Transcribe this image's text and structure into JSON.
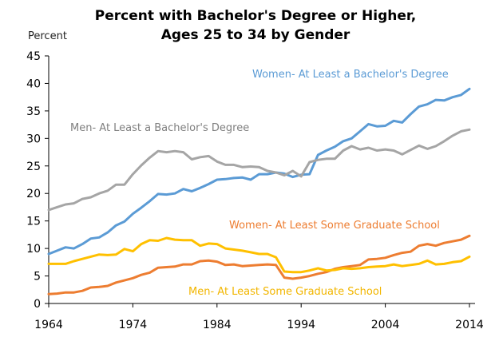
{
  "chart_data": {
    "type": "line",
    "title": [
      "Percent with Bachelor's Degree or Higher,",
      "Ages 25 to 34 by Gender"
    ],
    "ylabel": "Percent",
    "xlabel": "",
    "xlim": [
      1964,
      2014
    ],
    "ylim": [
      0,
      45
    ],
    "x_ticks": [
      1964,
      1974,
      1984,
      1994,
      2004,
      2014
    ],
    "y_ticks": [
      0,
      5,
      10,
      15,
      20,
      25,
      30,
      35,
      40,
      45
    ],
    "grid": false,
    "legend": "none (series labeled directly on chart)",
    "x": [
      1964,
      1965,
      1966,
      1967,
      1968,
      1969,
      1970,
      1971,
      1972,
      1973,
      1974,
      1975,
      1976,
      1977,
      1978,
      1979,
      1980,
      1981,
      1982,
      1983,
      1984,
      1985,
      1986,
      1987,
      1988,
      1989,
      1990,
      1991,
      1992,
      1993,
      1994,
      1995,
      1996,
      1997,
      1998,
      1999,
      2000,
      2001,
      2002,
      2003,
      2004,
      2005,
      2006,
      2007,
      2008,
      2009,
      2010,
      2011,
      2012,
      2013,
      2014
    ],
    "series": [
      {
        "name": "Women- At Least a Bachelor's Degree",
        "color": "#5B9BD5",
        "values": [
          9.0,
          9.6,
          10.2,
          10.0,
          10.8,
          11.8,
          12.0,
          12.9,
          14.2,
          14.9,
          16.3,
          17.4,
          18.6,
          19.9,
          19.8,
          20.0,
          20.8,
          20.4,
          21.0,
          21.7,
          22.5,
          22.6,
          22.8,
          22.9,
          22.5,
          23.5,
          23.5,
          23.8,
          23.6,
          23.0,
          23.4,
          23.5,
          27.0,
          27.8,
          28.5,
          29.5,
          30.0,
          31.3,
          32.6,
          32.2,
          32.3,
          33.2,
          32.9,
          34.4,
          35.8,
          36.2,
          37.0,
          36.9,
          37.5,
          37.9,
          39.0
        ]
      },
      {
        "name": "Men- At Least a Bachelor's Degree",
        "color": "#A5A5A5",
        "values": [
          17.0,
          17.5,
          18.0,
          18.2,
          19.0,
          19.3,
          20.0,
          20.5,
          21.6,
          21.6,
          23.5,
          25.1,
          26.5,
          27.7,
          27.5,
          27.7,
          27.5,
          26.2,
          26.6,
          26.8,
          25.8,
          25.2,
          25.2,
          24.8,
          24.9,
          24.8,
          24.1,
          23.8,
          23.3,
          24.1,
          23.1,
          25.7,
          26.1,
          26.3,
          26.3,
          27.8,
          28.6,
          28.0,
          28.3,
          27.8,
          28.0,
          27.8,
          27.1,
          27.9,
          28.7,
          28.1,
          28.6,
          29.5,
          30.5,
          31.3,
          31.6
        ]
      },
      {
        "name": "Women- At Least Some Graduate School",
        "color": "#ED7D31",
        "values": [
          1.7,
          1.8,
          2.0,
          2.0,
          2.3,
          2.9,
          3.0,
          3.2,
          3.8,
          4.2,
          4.6,
          5.2,
          5.6,
          6.5,
          6.6,
          6.7,
          7.1,
          7.1,
          7.7,
          7.8,
          7.6,
          7.0,
          7.1,
          6.8,
          6.9,
          7.0,
          7.1,
          7.0,
          4.7,
          4.5,
          4.7,
          5.0,
          5.4,
          5.7,
          6.3,
          6.6,
          6.8,
          7.0,
          8.0,
          8.1,
          8.3,
          8.8,
          9.2,
          9.4,
          10.5,
          10.8,
          10.5,
          11.0,
          11.3,
          11.6,
          12.3
        ]
      },
      {
        "name": "Men- At Least Some Graduate School",
        "color": "#FFC000",
        "values": [
          7.2,
          7.2,
          7.2,
          7.7,
          8.1,
          8.5,
          8.9,
          8.8,
          8.9,
          9.9,
          9.5,
          10.8,
          11.5,
          11.4,
          11.9,
          11.6,
          11.5,
          11.5,
          10.5,
          10.9,
          10.8,
          10.0,
          9.8,
          9.6,
          9.3,
          9.0,
          9.0,
          8.4,
          5.8,
          5.7,
          5.7,
          6.0,
          6.4,
          6.0,
          6.1,
          6.4,
          6.3,
          6.4,
          6.6,
          6.7,
          6.8,
          7.1,
          6.8,
          7.0,
          7.2,
          7.8,
          7.1,
          7.2,
          7.5,
          7.7,
          8.5
        ]
      }
    ],
    "annotations": [
      {
        "text": "Women- At Least a Bachelor's Degree",
        "color": "#5B9BD5"
      },
      {
        "text": "Men- At Least a Bachelor's Degree",
        "color": "#7F7F7F"
      },
      {
        "text": "Women- At Least Some Graduate School",
        "color": "#ED7D31"
      },
      {
        "text": "Men- At Least Some Graduate School",
        "color": "#F2B600"
      }
    ]
  }
}
